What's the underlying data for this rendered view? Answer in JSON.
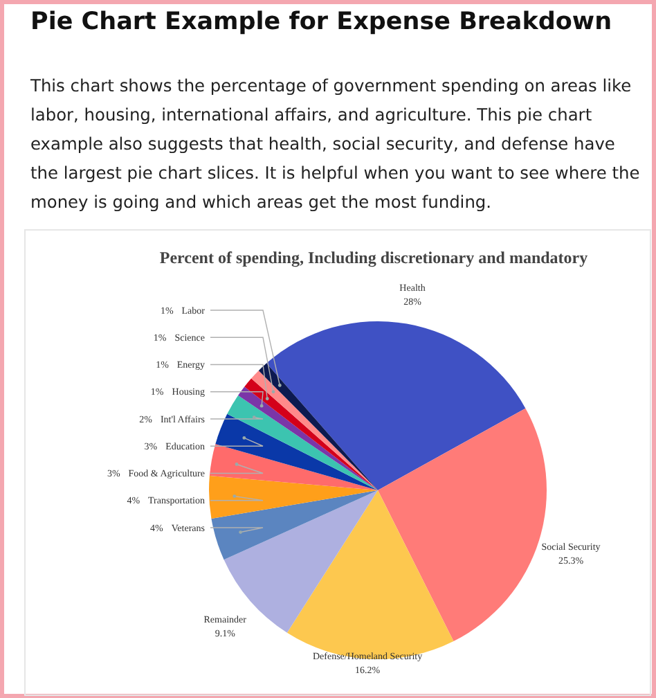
{
  "chart_data": {
    "type": "pie",
    "title": "Pie Chart Example for Expense Breakdown",
    "subtitle": "This chart shows the percentage of government spending on areas like labor, housing, international affairs, and agriculture. This pie chart example also suggests that health, social security, and defense have the largest pie chart slices. It is helpful when you want to see where the money is going and which areas get the most funding.",
    "annotations": [
      "Percent of spending, Including discretionary and mandatory"
    ],
    "categories": [
      "Health",
      "Social Security",
      "Defense/Homeland Security",
      "Remainder",
      "Veterans",
      "Transportation",
      "Food & Agriculture",
      "Education",
      "Int'l Affairs",
      "Housing",
      "Energy",
      "Science",
      "Labor"
    ],
    "values": [
      28,
      25.3,
      16.2,
      9.1,
      4,
      4,
      3,
      3,
      2,
      1,
      1,
      1,
      1
    ],
    "colors": [
      "#3f51c4",
      "#ff7b78",
      "#fdc84f",
      "#aeb0e0",
      "#5b85c0",
      "#ff9f1a",
      "#ff6b6b",
      "#0a38a8",
      "#3cc4b0",
      "#7b35a8",
      "#d4001a",
      "#ff8a8a",
      "#0d1a50"
    ],
    "value_labels": [
      "28%",
      "25.3%",
      "16.2%",
      "9.1%",
      "4%",
      "4%",
      "3%",
      "3%",
      "2%",
      "1%",
      "1%",
      "1%",
      "1%"
    ]
  }
}
